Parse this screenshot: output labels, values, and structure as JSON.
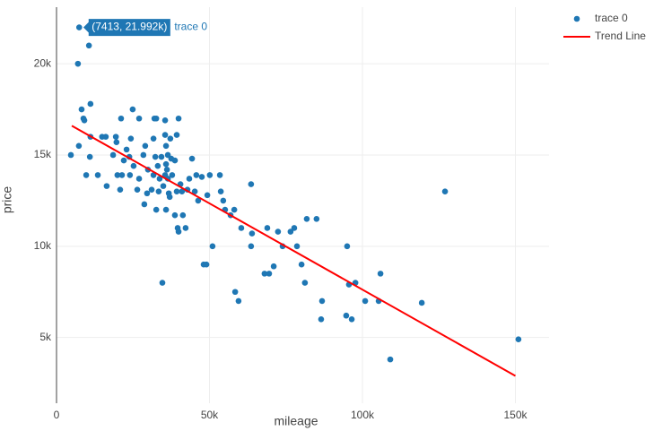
{
  "chart_data": {
    "type": "scatter",
    "x_label": "mileage",
    "y_label": "price",
    "xlim": [
      0,
      161000
    ],
    "ylim": [
      1400,
      23100
    ],
    "xticks": [
      0,
      {
        "value": 50000,
        "label": "50k"
      },
      {
        "value": 100000,
        "label": "100k"
      },
      {
        "value": 150000,
        "label": "150k"
      }
    ],
    "yticks": [
      {
        "value": 5000,
        "label": "5k"
      },
      {
        "value": 10000,
        "label": "10k"
      },
      {
        "value": 15000,
        "label": "15k"
      },
      {
        "value": 20000,
        "label": "20k"
      }
    ],
    "grid": true,
    "legend": "top-right",
    "hover": {
      "text": "(7413, 21.992k)",
      "name": "trace 0"
    },
    "series": [
      {
        "name": "trace 0",
        "color": "#1f77b4",
        "mode": "markers",
        "x": [
          7413,
          7000,
          10600,
          4700,
          7300,
          8200,
          8800,
          9100,
          11100,
          11100,
          10900,
          9700,
          13500,
          14900,
          16100,
          16400,
          18500,
          19400,
          19600,
          19900,
          20800,
          21100,
          21400,
          22000,
          22900,
          23800,
          24300,
          24900,
          24000,
          25200,
          26400,
          27000,
          27000,
          28400,
          29000,
          28700,
          29900,
          29600,
          31100,
          31700,
          32000,
          32300,
          33100,
          33400,
          31700,
          32600,
          32600,
          33700,
          34300,
          34900,
          35500,
          35500,
          35800,
          35800,
          36100,
          36400,
          36400,
          36700,
          35500,
          35800,
          34600,
          37000,
          37200,
          37500,
          37800,
          38700,
          38700,
          39300,
          39300,
          39600,
          39900,
          39900,
          40500,
          41000,
          41300,
          42200,
          42800,
          43400,
          44300,
          45200,
          45700,
          46300,
          47500,
          48100,
          49000,
          49300,
          50100,
          51000,
          53400,
          53700,
          54500,
          55100,
          56900,
          58100,
          58400,
          59500,
          60400,
          63600,
          63600,
          63900,
          68000,
          68900,
          69500,
          71000,
          72400,
          73900,
          76500,
          77700,
          78600,
          80100,
          81200,
          81800,
          85000,
          86500,
          86800,
          95000,
          94700,
          95600,
          96500,
          97700,
          100900,
          105300,
          105900,
          109100,
          119400,
          127000,
          151000
        ],
        "values": [
          21992,
          20000,
          21000,
          15000,
          15500,
          17500,
          17000,
          16900,
          17800,
          16000,
          14900,
          13900,
          13900,
          16000,
          16000,
          13300,
          15000,
          16000,
          15700,
          13900,
          13100,
          17000,
          13900,
          14700,
          15300,
          14900,
          15900,
          17500,
          13900,
          14400,
          13100,
          17000,
          13700,
          15000,
          15500,
          12300,
          14200,
          12900,
          13100,
          15900,
          17000,
          14900,
          14400,
          13000,
          13900,
          12000,
          17000,
          13700,
          14900,
          13300,
          16900,
          16100,
          15500,
          14500,
          14200,
          15000,
          13700,
          12900,
          13900,
          12000,
          8000,
          12700,
          15900,
          14800,
          13900,
          14700,
          11700,
          16100,
          13000,
          11000,
          10800,
          17000,
          13400,
          13000,
          11700,
          11000,
          13100,
          13700,
          14800,
          13000,
          13900,
          12500,
          13800,
          9000,
          9000,
          12800,
          13900,
          10000,
          13900,
          13000,
          12500,
          12000,
          11700,
          12000,
          7500,
          7000,
          11000,
          13400,
          10000,
          10700,
          8500,
          11000,
          8500,
          8900,
          10800,
          10000,
          10800,
          11000,
          10000,
          9000,
          8000,
          11500,
          11500,
          6000,
          7000,
          10000,
          6200,
          7900,
          6000,
          8000,
          7000,
          7000,
          8500,
          3800,
          6900,
          13000,
          4900
        ]
      },
      {
        "name": "Trend Line",
        "color": "#ff0000",
        "mode": "lines",
        "x": [
          5000,
          150000
        ],
        "values": [
          16600,
          2900
        ]
      }
    ]
  }
}
